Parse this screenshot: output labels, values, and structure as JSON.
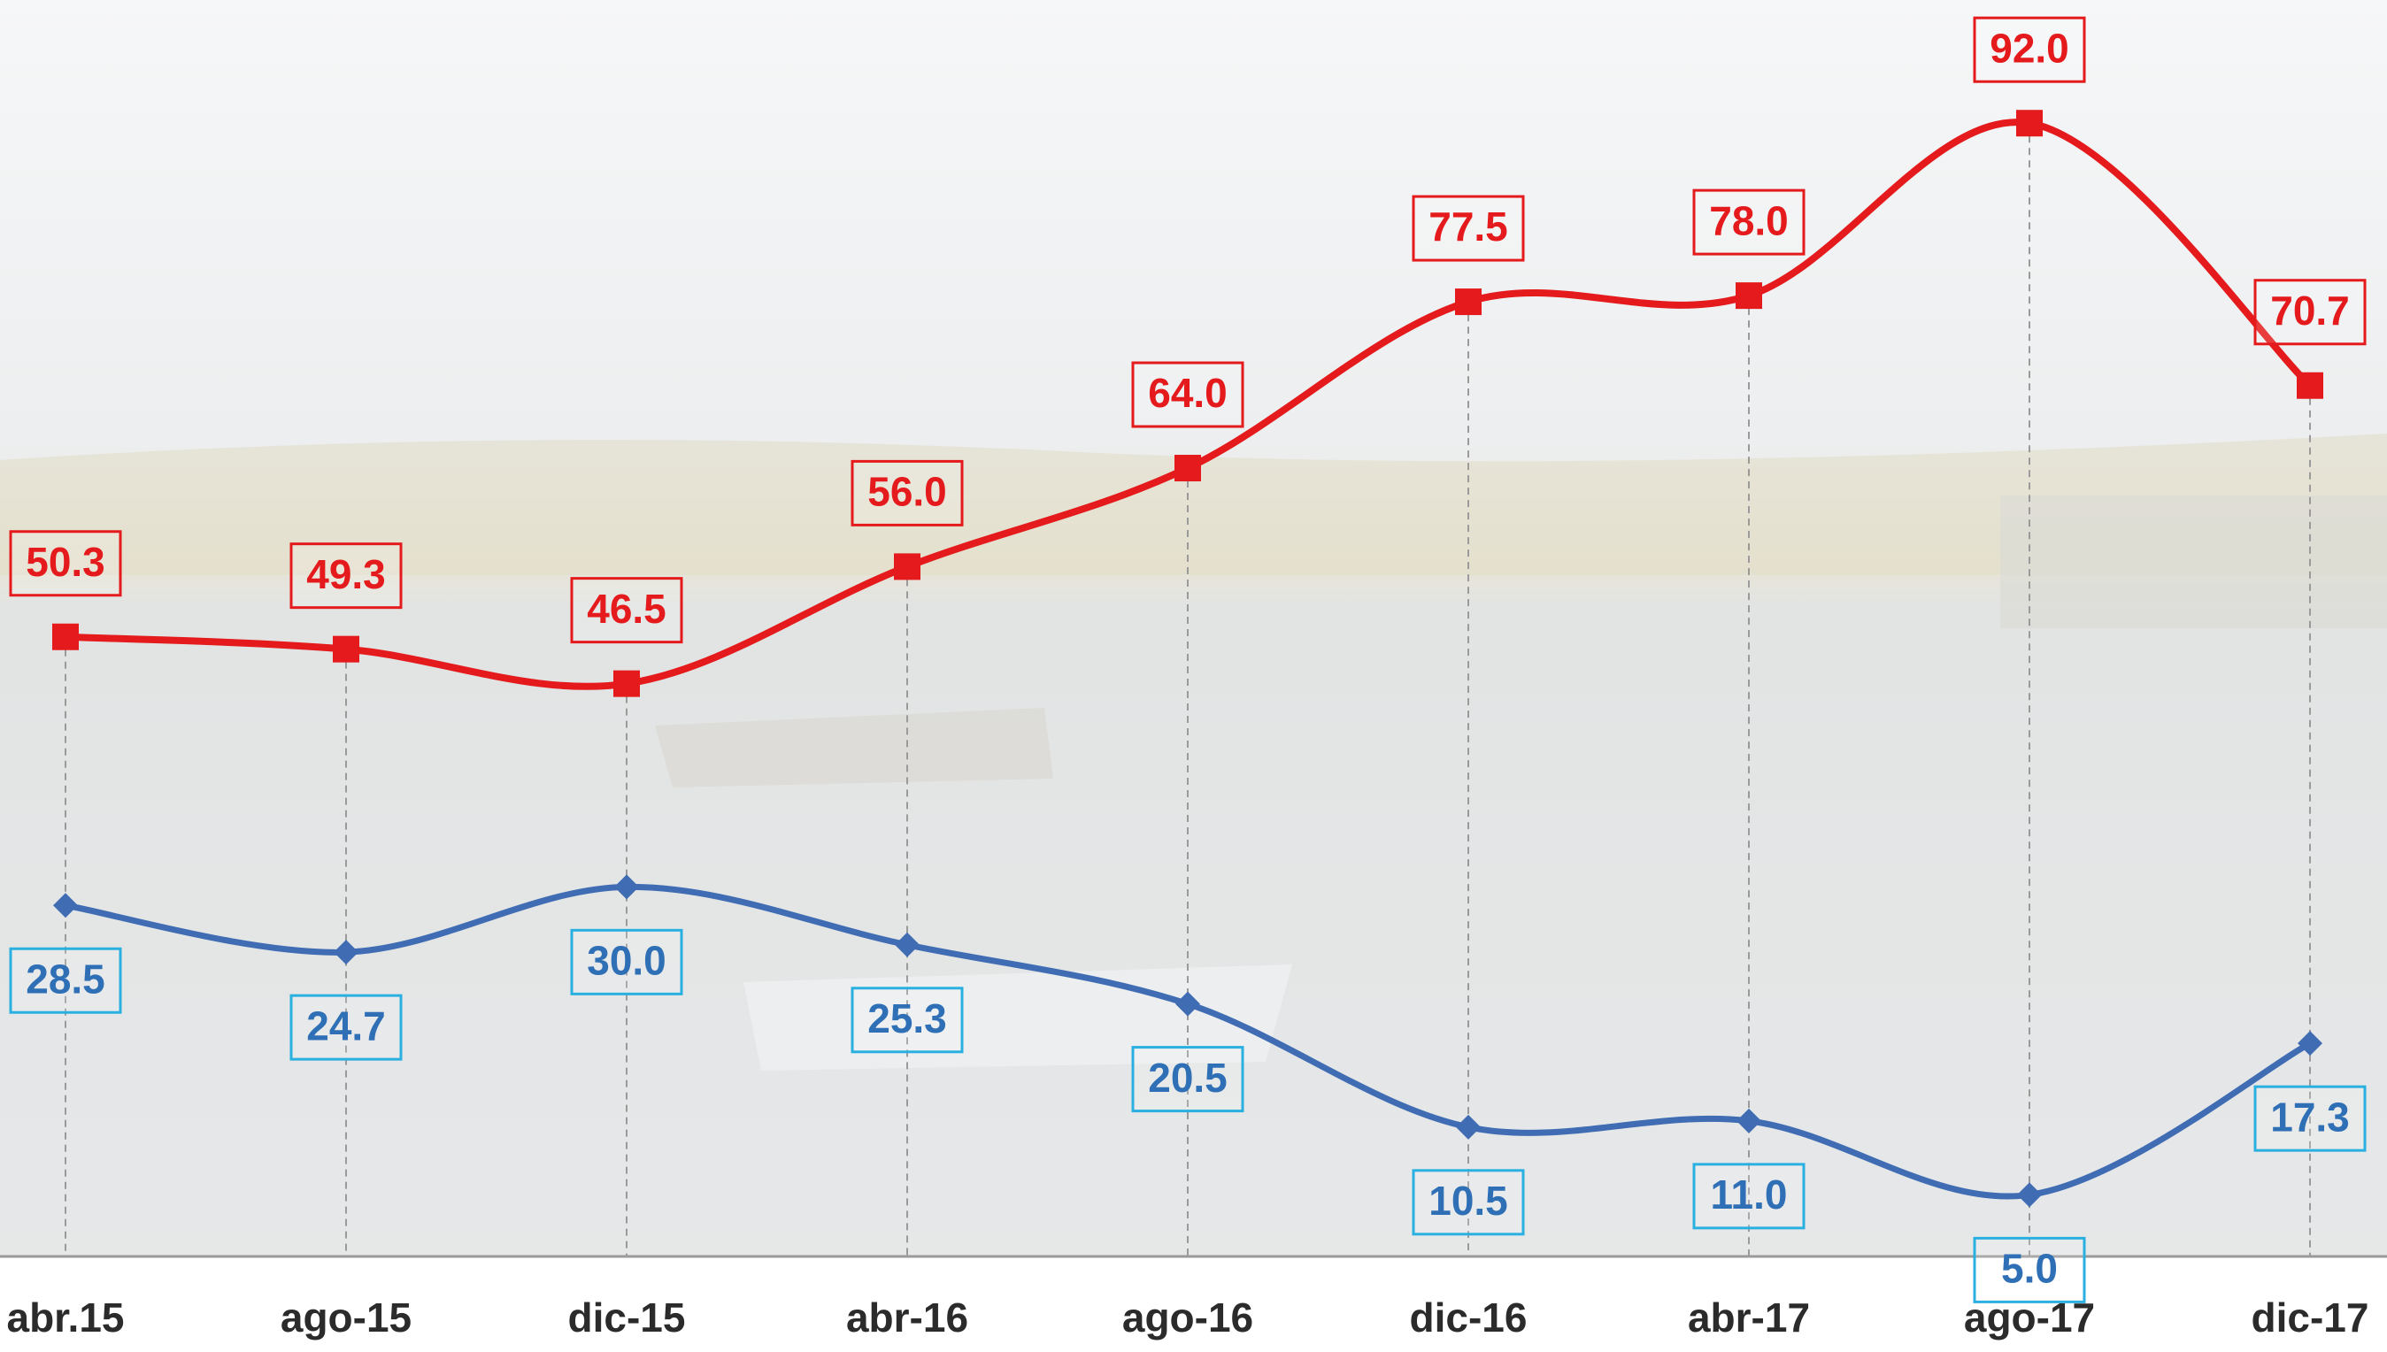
{
  "chart_data": {
    "type": "line",
    "categories": [
      "abr.15",
      "ago-15",
      "dic-15",
      "abr-16",
      "ago-16",
      "dic-16",
      "abr-17",
      "ago-17",
      "dic-17"
    ],
    "series": [
      {
        "color": "#e41a1c",
        "values": [
          50.3,
          49.3,
          46.5,
          56.0,
          64.0,
          77.5,
          78.0,
          92.0,
          70.7
        ],
        "value_labels": [
          "50.3",
          "49.3",
          "46.5",
          "56.0",
          "64.0",
          "77.5",
          "78.0",
          "92.0",
          "70.7"
        ]
      },
      {
        "color": "#3f6cb3",
        "values": [
          28.5,
          24.7,
          30.0,
          25.3,
          20.5,
          10.5,
          11.0,
          5.0,
          17.3
        ],
        "value_labels": [
          "28.5",
          "24.7",
          "30.0",
          "25.3",
          "20.5",
          "10.5",
          "11.0",
          "5.0",
          "17.3"
        ]
      }
    ],
    "ylim": [
      0,
      102
    ]
  }
}
